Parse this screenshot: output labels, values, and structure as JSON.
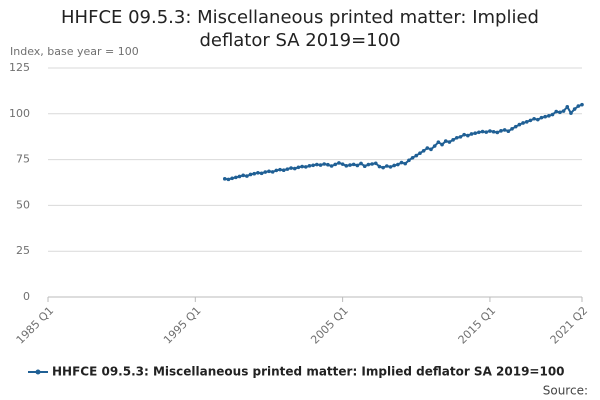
{
  "chart_data": {
    "type": "line",
    "title": "HHFCE 09.5.3: Miscellaneous printed matter: Implied deflator SA 2019=100",
    "y_label": "Index, base year = 100",
    "source": "Source:",
    "x": [
      1997,
      1997.25,
      1997.5,
      1997.75,
      1998,
      1998.25,
      1998.5,
      1998.75,
      1999,
      1999.25,
      1999.5,
      1999.75,
      2000,
      2000.25,
      2000.5,
      2000.75,
      2001,
      2001.25,
      2001.5,
      2001.75,
      2002,
      2002.25,
      2002.5,
      2002.75,
      2003,
      2003.25,
      2003.5,
      2003.75,
      2004,
      2004.25,
      2004.5,
      2004.75,
      2005,
      2005.25,
      2005.5,
      2005.75,
      2006,
      2006.25,
      2006.5,
      2006.75,
      2007,
      2007.25,
      2007.5,
      2007.75,
      2008,
      2008.25,
      2008.5,
      2008.75,
      2009,
      2009.25,
      2009.5,
      2009.75,
      2010,
      2010.25,
      2010.5,
      2010.75,
      2011,
      2011.25,
      2011.5,
      2011.75,
      2012,
      2012.25,
      2012.5,
      2012.75,
      2013,
      2013.25,
      2013.5,
      2013.75,
      2014,
      2014.25,
      2014.5,
      2014.75,
      2015,
      2015.25,
      2015.5,
      2015.75,
      2016,
      2016.25,
      2016.5,
      2016.75,
      2017,
      2017.25,
      2017.5,
      2017.75,
      2018,
      2018.25,
      2018.5,
      2018.75,
      2019,
      2019.25,
      2019.5,
      2019.75,
      2020,
      2020.25,
      2020.5,
      2020.75,
      2021,
      2021.25
    ],
    "series": [
      {
        "name": "HHFCE 09.5.3: Miscellaneous printed matter: Implied deflator SA 2019=100",
        "color": "#206095",
        "values": [
          64.5,
          64.2,
          64.8,
          65.3,
          65.8,
          66.4,
          66.0,
          66.9,
          67.3,
          67.8,
          67.5,
          68.2,
          68.6,
          68.3,
          69.1,
          69.5,
          69.2,
          69.8,
          70.4,
          70.1,
          70.8,
          71.2,
          71.0,
          71.6,
          71.9,
          72.3,
          72.0,
          72.6,
          72.2,
          71.5,
          72.4,
          73.2,
          72.5,
          71.6,
          72.0,
          72.4,
          71.8,
          72.9,
          71.4,
          72.3,
          72.6,
          73.0,
          71.2,
          70.6,
          71.5,
          71.0,
          71.8,
          72.3,
          73.4,
          72.8,
          74.6,
          76.0,
          77.2,
          78.5,
          79.8,
          81.3,
          80.6,
          82.4,
          84.5,
          83.2,
          85.1,
          84.6,
          85.8,
          86.9,
          87.4,
          88.6,
          88.1,
          89.0,
          89.4,
          89.9,
          90.3,
          90.0,
          90.6,
          90.2,
          89.8,
          90.7,
          91.2,
          90.5,
          91.8,
          93.0,
          94.1,
          95.0,
          95.6,
          96.4,
          97.3,
          96.8,
          97.9,
          98.4,
          98.9,
          99.6,
          101.2,
          100.8,
          101.5,
          103.8,
          100.4,
          102.6,
          104.2,
          105.0
        ]
      }
    ],
    "xlim": [
      1985,
      2021.25
    ],
    "xticks": [
      {
        "value": 1985,
        "label": "1985 Q1"
      },
      {
        "value": 1995,
        "label": "1995 Q1"
      },
      {
        "value": 2005,
        "label": "2005 Q1"
      },
      {
        "value": 2015,
        "label": "2015 Q1"
      },
      {
        "value": 2021.25,
        "label": "2021 Q2"
      }
    ],
    "ylim": [
      0,
      125
    ],
    "yticks": [
      0,
      25,
      50,
      75,
      100,
      125
    ],
    "grid": true
  }
}
